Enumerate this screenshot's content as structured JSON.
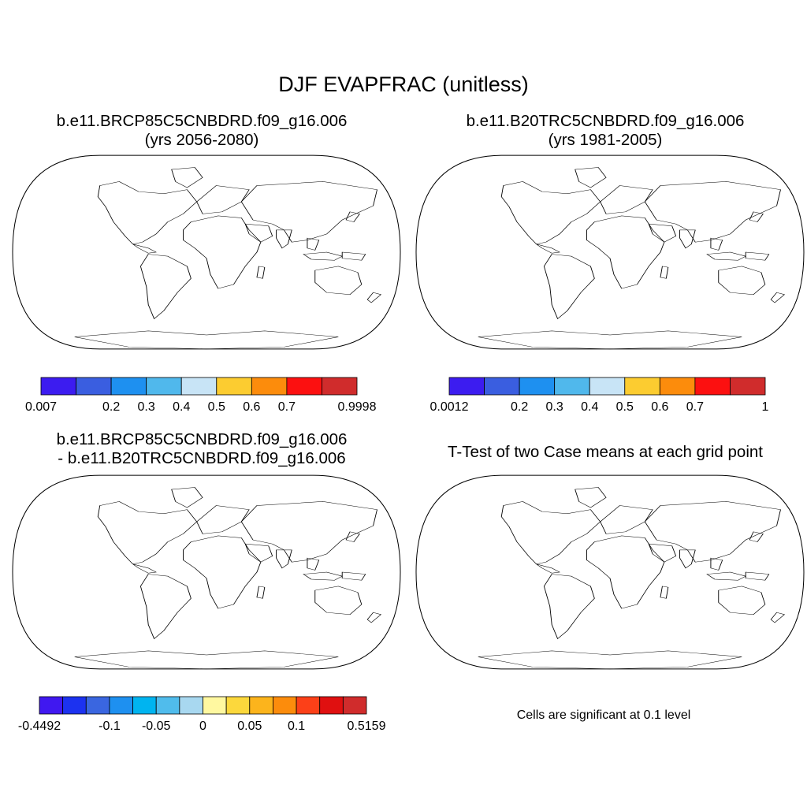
{
  "main_title": "DJF EVAPFRAC (unitless)",
  "panels": [
    {
      "id": "future",
      "title_line1": "b.e11.BRCP85C5CNBDRD.f09_g16.006",
      "title_line2": "(yrs 2056-2080)",
      "colorbar": {
        "colors": [
          "#3c1cf0",
          "#3a5ee0",
          "#1e90f0",
          "#50b8ec",
          "#c8e4f6",
          "#fccc30",
          "#fc8c0c",
          "#fc1010",
          "#d02c2c"
        ],
        "labels": [
          "0.007",
          "0.2",
          "0.3",
          "0.4",
          "0.5",
          "0.6",
          "0.7",
          "0.9998"
        ],
        "label_boundaries": [
          0,
          2,
          3,
          4,
          5,
          6,
          7,
          9
        ]
      }
    },
    {
      "id": "historical",
      "title_line1": "b.e11.B20TRC5CNBDRD.f09_g16.006",
      "title_line2": "(yrs 1981-2005)",
      "colorbar": {
        "colors": [
          "#3c1cf0",
          "#3a5ee0",
          "#1e90f0",
          "#50b8ec",
          "#c8e4f6",
          "#fccc30",
          "#fc8c0c",
          "#fc1010",
          "#d02c2c"
        ],
        "labels": [
          "0.0012",
          "0.2",
          "0.3",
          "0.4",
          "0.5",
          "0.6",
          "0.7",
          "1"
        ],
        "label_boundaries": [
          0,
          2,
          3,
          4,
          5,
          6,
          7,
          9
        ]
      }
    },
    {
      "id": "difference",
      "title_line1": "b.e11.BRCP85C5CNBDRD.f09_g16.006",
      "title_line2": "- b.e11.B20TRC5CNBDRD.f09_g16.006",
      "colorbar": {
        "colors": [
          "#4018f0",
          "#1c32f0",
          "#3a66e0",
          "#1e90f0",
          "#00b4f0",
          "#50bcec",
          "#a8d8f0",
          "#fff8a0",
          "#fcd83c",
          "#fcb41c",
          "#fc8c0c",
          "#fc4018",
          "#e01010",
          "#d02c2c"
        ],
        "labels": [
          "-0.4492",
          "-0.1",
          "-0.05",
          "0",
          "0.05",
          "0.1",
          "0.5159"
        ],
        "label_boundaries": [
          0,
          3,
          5,
          7,
          9,
          11,
          14
        ]
      }
    },
    {
      "id": "ttest",
      "title_line1": "T-Test of two Case means at each grid point",
      "significance_note": "Cells are significant at 0.1 level",
      "significance_color": "#ee0000"
    }
  ]
}
